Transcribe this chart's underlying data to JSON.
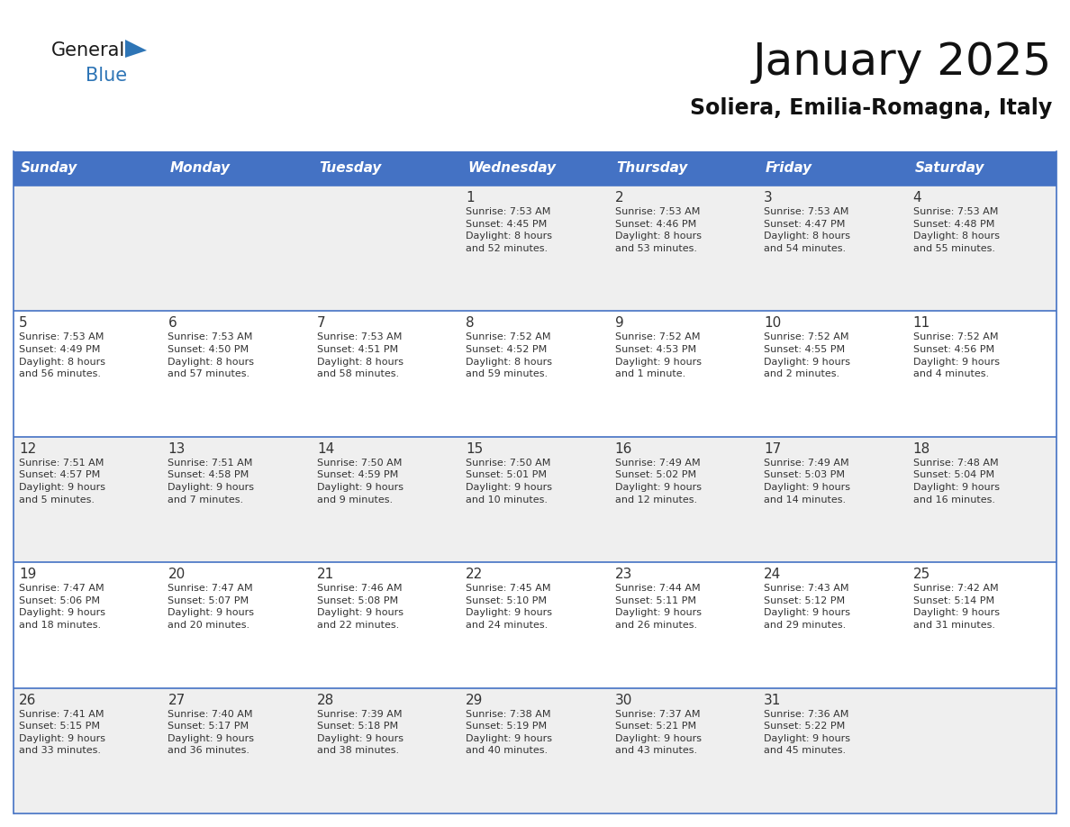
{
  "title": "January 2025",
  "subtitle": "Soliera, Emilia-Romagna, Italy",
  "days_of_week": [
    "Sunday",
    "Monday",
    "Tuesday",
    "Wednesday",
    "Thursday",
    "Friday",
    "Saturday"
  ],
  "header_bg": "#4472C4",
  "header_text_color": "#FFFFFF",
  "cell_bg_white": "#FFFFFF",
  "cell_bg_gray": "#EFEFEF",
  "cell_text_color": "#333333",
  "day_num_color": "#333333",
  "grid_line_color": "#4472C4",
  "background_color": "#FFFFFF",
  "logo_general_color": "#1a1a1a",
  "logo_blue_color": "#2E75B6",
  "logo_triangle_color": "#2E75B6",
  "weeks": [
    [
      {
        "day": null,
        "info": null
      },
      {
        "day": null,
        "info": null
      },
      {
        "day": null,
        "info": null
      },
      {
        "day": 1,
        "info": "Sunrise: 7:53 AM\nSunset: 4:45 PM\nDaylight: 8 hours\nand 52 minutes."
      },
      {
        "day": 2,
        "info": "Sunrise: 7:53 AM\nSunset: 4:46 PM\nDaylight: 8 hours\nand 53 minutes."
      },
      {
        "day": 3,
        "info": "Sunrise: 7:53 AM\nSunset: 4:47 PM\nDaylight: 8 hours\nand 54 minutes."
      },
      {
        "day": 4,
        "info": "Sunrise: 7:53 AM\nSunset: 4:48 PM\nDaylight: 8 hours\nand 55 minutes."
      }
    ],
    [
      {
        "day": 5,
        "info": "Sunrise: 7:53 AM\nSunset: 4:49 PM\nDaylight: 8 hours\nand 56 minutes."
      },
      {
        "day": 6,
        "info": "Sunrise: 7:53 AM\nSunset: 4:50 PM\nDaylight: 8 hours\nand 57 minutes."
      },
      {
        "day": 7,
        "info": "Sunrise: 7:53 AM\nSunset: 4:51 PM\nDaylight: 8 hours\nand 58 minutes."
      },
      {
        "day": 8,
        "info": "Sunrise: 7:52 AM\nSunset: 4:52 PM\nDaylight: 8 hours\nand 59 minutes."
      },
      {
        "day": 9,
        "info": "Sunrise: 7:52 AM\nSunset: 4:53 PM\nDaylight: 9 hours\nand 1 minute."
      },
      {
        "day": 10,
        "info": "Sunrise: 7:52 AM\nSunset: 4:55 PM\nDaylight: 9 hours\nand 2 minutes."
      },
      {
        "day": 11,
        "info": "Sunrise: 7:52 AM\nSunset: 4:56 PM\nDaylight: 9 hours\nand 4 minutes."
      }
    ],
    [
      {
        "day": 12,
        "info": "Sunrise: 7:51 AM\nSunset: 4:57 PM\nDaylight: 9 hours\nand 5 minutes."
      },
      {
        "day": 13,
        "info": "Sunrise: 7:51 AM\nSunset: 4:58 PM\nDaylight: 9 hours\nand 7 minutes."
      },
      {
        "day": 14,
        "info": "Sunrise: 7:50 AM\nSunset: 4:59 PM\nDaylight: 9 hours\nand 9 minutes."
      },
      {
        "day": 15,
        "info": "Sunrise: 7:50 AM\nSunset: 5:01 PM\nDaylight: 9 hours\nand 10 minutes."
      },
      {
        "day": 16,
        "info": "Sunrise: 7:49 AM\nSunset: 5:02 PM\nDaylight: 9 hours\nand 12 minutes."
      },
      {
        "day": 17,
        "info": "Sunrise: 7:49 AM\nSunset: 5:03 PM\nDaylight: 9 hours\nand 14 minutes."
      },
      {
        "day": 18,
        "info": "Sunrise: 7:48 AM\nSunset: 5:04 PM\nDaylight: 9 hours\nand 16 minutes."
      }
    ],
    [
      {
        "day": 19,
        "info": "Sunrise: 7:47 AM\nSunset: 5:06 PM\nDaylight: 9 hours\nand 18 minutes."
      },
      {
        "day": 20,
        "info": "Sunrise: 7:47 AM\nSunset: 5:07 PM\nDaylight: 9 hours\nand 20 minutes."
      },
      {
        "day": 21,
        "info": "Sunrise: 7:46 AM\nSunset: 5:08 PM\nDaylight: 9 hours\nand 22 minutes."
      },
      {
        "day": 22,
        "info": "Sunrise: 7:45 AM\nSunset: 5:10 PM\nDaylight: 9 hours\nand 24 minutes."
      },
      {
        "day": 23,
        "info": "Sunrise: 7:44 AM\nSunset: 5:11 PM\nDaylight: 9 hours\nand 26 minutes."
      },
      {
        "day": 24,
        "info": "Sunrise: 7:43 AM\nSunset: 5:12 PM\nDaylight: 9 hours\nand 29 minutes."
      },
      {
        "day": 25,
        "info": "Sunrise: 7:42 AM\nSunset: 5:14 PM\nDaylight: 9 hours\nand 31 minutes."
      }
    ],
    [
      {
        "day": 26,
        "info": "Sunrise: 7:41 AM\nSunset: 5:15 PM\nDaylight: 9 hours\nand 33 minutes."
      },
      {
        "day": 27,
        "info": "Sunrise: 7:40 AM\nSunset: 5:17 PM\nDaylight: 9 hours\nand 36 minutes."
      },
      {
        "day": 28,
        "info": "Sunrise: 7:39 AM\nSunset: 5:18 PM\nDaylight: 9 hours\nand 38 minutes."
      },
      {
        "day": 29,
        "info": "Sunrise: 7:38 AM\nSunset: 5:19 PM\nDaylight: 9 hours\nand 40 minutes."
      },
      {
        "day": 30,
        "info": "Sunrise: 7:37 AM\nSunset: 5:21 PM\nDaylight: 9 hours\nand 43 minutes."
      },
      {
        "day": 31,
        "info": "Sunrise: 7:36 AM\nSunset: 5:22 PM\nDaylight: 9 hours\nand 45 minutes."
      },
      {
        "day": null,
        "info": null
      }
    ]
  ]
}
